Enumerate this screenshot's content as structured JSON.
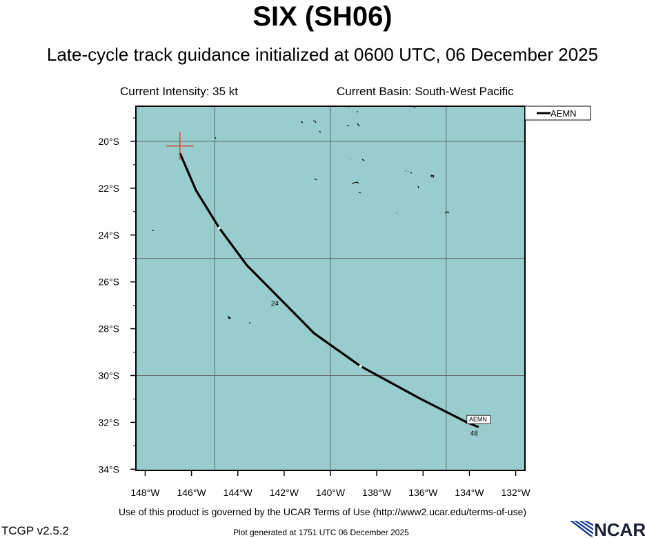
{
  "header": {
    "title": "SIX (SH06)",
    "subtitle": "Late-cycle track guidance initialized at 0600 UTC, 06 December 2025",
    "current_intensity": "Current Intensity: 35 kt",
    "current_basin": "Current Basin: South-West Pacific"
  },
  "legend": {
    "entry": "AEMN"
  },
  "track": {
    "label": "AEMN",
    "points": [
      [
        -146.5,
        -20.5
      ],
      [
        -145.8,
        -22.1
      ],
      [
        -144.8,
        -23.7
      ],
      [
        -143.6,
        -25.3
      ],
      [
        -142.2,
        -26.7
      ],
      [
        -140.7,
        -28.2
      ],
      [
        -138.7,
        -29.6
      ],
      [
        -136.1,
        -31.0
      ],
      [
        -134.1,
        -32.0
      ],
      [
        -133.6,
        -32.2
      ]
    ],
    "hour_labels": [
      {
        "text": "24",
        "lon": -142.4,
        "lat": -26.9
      },
      {
        "text": "48",
        "lon": -133.8,
        "lat": -32.45
      }
    ]
  },
  "current_position": {
    "lon": -146.5,
    "lat": -20.2
  },
  "map": {
    "lon_range": [
      -148.4,
      -131.6
    ],
    "lat_range": [
      -34.05,
      -18.5
    ],
    "gridlines_lon": [
      -145,
      -140,
      -135
    ],
    "gridlines_lat": [
      -20,
      -25,
      -30
    ],
    "lon_ticks": [
      "148°W",
      "146°W",
      "144°W",
      "142°W",
      "140°W",
      "138°W",
      "136°W",
      "134°W",
      "132°W"
    ],
    "lat_ticks": [
      "20°S",
      "22°S",
      "24°S",
      "26°S",
      "28°S",
      "30°S",
      "32°S",
      "34°S"
    ],
    "ocean_color": "#99cccc",
    "track_color": "#000000",
    "marker_color": "#dd3322"
  },
  "footer": {
    "terms": "Use of this product is governed by the UCAR Terms of Use (http://www2.ucar.edu/terms-of-use)",
    "version": "TCGP v2.5.2",
    "generated": "Plot generated at 1751 UTC   06 December 2025",
    "logo_text": "NCAR"
  }
}
